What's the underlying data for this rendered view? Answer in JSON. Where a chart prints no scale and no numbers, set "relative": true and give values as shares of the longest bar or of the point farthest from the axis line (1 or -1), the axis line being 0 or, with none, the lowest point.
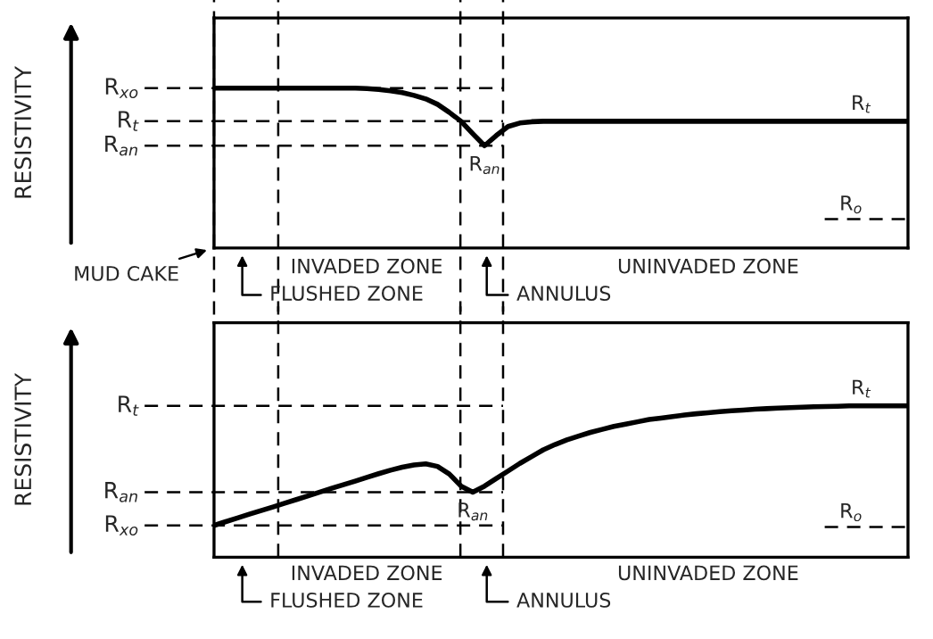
{
  "chart_data": [
    {
      "type": "line",
      "relative": true,
      "ylabel": "RESISTIVITY",
      "categories": [
        null,
        null,
        null,
        null,
        null,
        null,
        null,
        null,
        null,
        null,
        null,
        null,
        null,
        null,
        null,
        null,
        null,
        null,
        null,
        null,
        null,
        null,
        null,
        null,
        null,
        null,
        null,
        null,
        null,
        null,
        null,
        null,
        null,
        null,
        null,
        null,
        null,
        null,
        null,
        null,
        null,
        null,
        null,
        null,
        null,
        null,
        null,
        null,
        null,
        null,
        null,
        null,
        null,
        null,
        null,
        null,
        null,
        null,
        null,
        null
      ],
      "series": [
        {
          "color": "#000000",
          "values": [
            1,
            1,
            1,
            1,
            1,
            1,
            1,
            1,
            1,
            1,
            1,
            1,
            1,
            0.997,
            0.992,
            0.983,
            0.972,
            0.955,
            0.933,
            0.899,
            0.849,
            0.793,
            0.715,
            0.64,
            0.704,
            0.76,
            0.782,
            0.79,
            0.793,
            0.793,
            0.793,
            0.793,
            0.793,
            0.793,
            0.793,
            0.793,
            0.793,
            0.793,
            0.793,
            0.793,
            0.793,
            0.793,
            0.793,
            0.793,
            0.793,
            0.793,
            0.793,
            0.793,
            0.793,
            0.793,
            0.793,
            0.793,
            0.793,
            0.793,
            0.793,
            0.793,
            0.793,
            0.793,
            0.793,
            0.793
          ]
        }
      ],
      "ref_lines": [
        {
          "axis": "y",
          "value": 1,
          "label": "R$_{xo}$",
          "line_style": "dashed"
        },
        {
          "axis": "y",
          "value": 0.793,
          "label": "R$_{t}$",
          "line_style": "dashed"
        },
        {
          "axis": "y",
          "value": 0.64,
          "label": "R$_{an}$",
          "line_style": "dashed"
        },
        {
          "axis": "y",
          "value": 0.18,
          "label": null,
          "line_style": "dashed"
        }
      ],
      "annotations": [
        {
          "text": "R$_{an}$",
          "y": 0.64
        },
        {
          "text": "R$_{t}$",
          "y": 0.793
        },
        {
          "text": "R$_{o}$",
          "y": 0.18
        },
        "MUD CAKE",
        "FLUSHED ZONE",
        "INVADED ZONE",
        "ANNULUS",
        "UNINVADED ZONE"
      ]
    },
    {
      "type": "line",
      "relative": true,
      "ylabel": "RESISTIVITY",
      "categories": [
        null,
        null,
        null,
        null,
        null,
        null,
        null,
        null,
        null,
        null,
        null,
        null,
        null,
        null,
        null,
        null,
        null,
        null,
        null,
        null,
        null,
        null,
        null,
        null,
        null,
        null,
        null,
        null,
        null,
        null,
        null,
        null,
        null,
        null,
        null,
        null,
        null,
        null,
        null,
        null,
        null,
        null,
        null,
        null,
        null,
        null,
        null,
        null,
        null,
        null,
        null,
        null,
        null,
        null,
        null,
        null,
        null,
        null,
        null,
        null
      ],
      "series": [
        {
          "color": "#000000",
          "values": [
            0.21,
            0.235,
            0.259,
            0.284,
            0.308,
            0.332,
            0.357,
            0.381,
            0.406,
            0.43,
            0.455,
            0.479,
            0.503,
            0.528,
            0.552,
            0.575,
            0.595,
            0.61,
            0.617,
            0.6,
            0.55,
            0.47,
            0.43,
            0.47,
            0.52,
            0.57,
            0.62,
            0.665,
            0.71,
            0.745,
            0.775,
            0.8,
            0.825,
            0.845,
            0.865,
            0.88,
            0.895,
            0.91,
            0.92,
            0.93,
            0.94,
            0.948,
            0.955,
            0.962,
            0.968,
            0.973,
            0.978,
            0.982,
            0.986,
            0.989,
            0.992,
            0.994,
            0.996,
            0.998,
            1,
            1,
            1,
            1,
            1,
            1
          ]
        }
      ],
      "ref_lines": [
        {
          "axis": "y",
          "value": 1,
          "label": "R$_{t}$",
          "line_style": "dashed"
        },
        {
          "axis": "y",
          "value": 0.43,
          "label": "R$_{an}$",
          "line_style": "dashed"
        },
        {
          "axis": "y",
          "value": 0.21,
          "label": "R$_{xo}$",
          "line_style": "dashed"
        },
        {
          "axis": "y",
          "value": 0.2,
          "label": null,
          "line_style": "dashed"
        }
      ],
      "annotations": [
        {
          "text": "R$_{an}$",
          "y": 0.43
        },
        {
          "text": "R$_{t}$",
          "y": 1
        },
        {
          "text": "R$_{o}$",
          "y": 0.2
        },
        "FLUSHED ZONE",
        "INVADED ZONE",
        "ANNULUS",
        "UNINVADED ZONE"
      ]
    }
  ]
}
